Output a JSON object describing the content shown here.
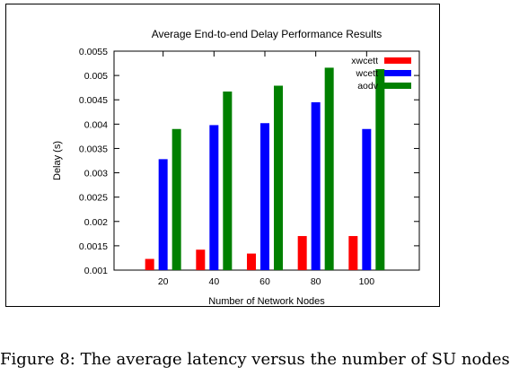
{
  "chart_data": {
    "type": "bar",
    "title": "Average End-to-end Delay Performance Results",
    "xlabel": "Number of Network Nodes",
    "ylabel": "Delay (s)",
    "categories": [
      "20",
      "40",
      "60",
      "80",
      "100"
    ],
    "yticks": [
      "0.001",
      "0.0015",
      "0.002",
      "0.0025",
      "0.003",
      "0.0035",
      "0.004",
      "0.0045",
      "0.005",
      "0.0055"
    ],
    "ylim": [
      0.001,
      0.0055
    ],
    "grid": false,
    "legend_position": "top-right",
    "series": [
      {
        "name": "xwcett",
        "color": "#ff0000",
        "values": [
          0.00123,
          0.00142,
          0.00134,
          0.0017,
          0.0017
        ]
      },
      {
        "name": "wcett",
        "color": "#0000ff",
        "values": [
          0.00328,
          0.00398,
          0.00402,
          0.00445,
          0.0039
        ]
      },
      {
        "name": "aodv",
        "color": "#008000",
        "values": [
          0.0039,
          0.00467,
          0.00479,
          0.00516,
          0.00513
        ]
      }
    ]
  },
  "caption": "Figure 8: The average latency versus the number of SU nodes"
}
